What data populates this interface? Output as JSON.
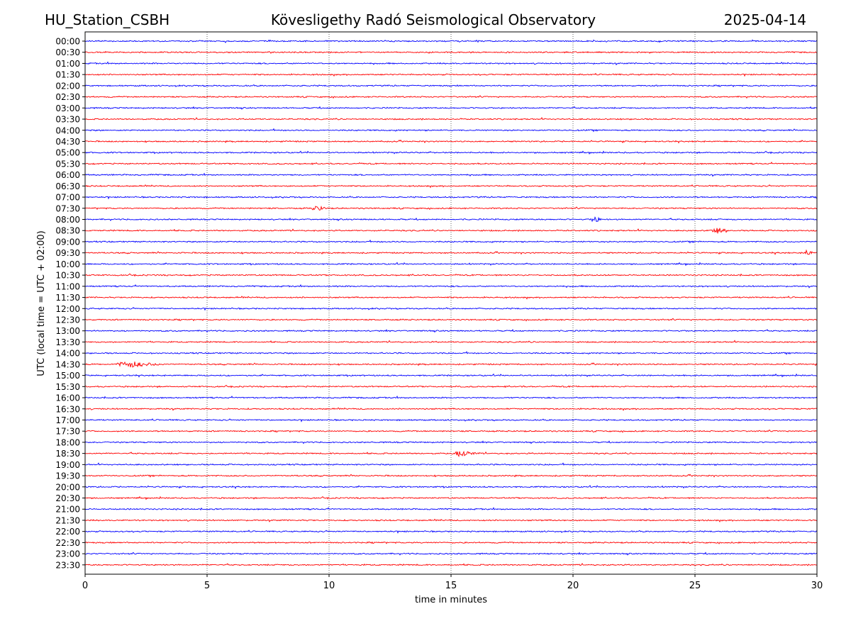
{
  "header": {
    "station": "HU_Station_CSBH",
    "observatory": "Kövesligethy Radó Seismological Observatory",
    "date": "2025-04-14"
  },
  "colors": {
    "odd_trace": "#0000ff",
    "even_trace": "#ff0000",
    "axis": "#000000",
    "grid": "#000000"
  },
  "chart_data": {
    "type": "line",
    "title": "",
    "xlabel": "time in minutes",
    "ylabel": "UTC (local time = UTC + 02:00)",
    "xlim": [
      0,
      30
    ],
    "x_ticks": [
      0,
      5,
      10,
      15,
      20,
      25,
      30
    ],
    "grid": "vertical dotted lines at every 5 minutes",
    "trace_colors": [
      "blue",
      "red"
    ],
    "rows": [
      "00:00",
      "00:30",
      "01:00",
      "01:30",
      "02:00",
      "02:30",
      "03:00",
      "03:30",
      "04:00",
      "04:30",
      "05:00",
      "05:30",
      "06:00",
      "06:30",
      "07:00",
      "07:30",
      "08:00",
      "08:30",
      "09:00",
      "09:30",
      "10:00",
      "10:30",
      "11:00",
      "11:30",
      "12:00",
      "12:30",
      "13:00",
      "13:30",
      "14:00",
      "14:30",
      "15:00",
      "15:30",
      "16:00",
      "16:30",
      "17:00",
      "17:30",
      "18:00",
      "18:30",
      "19:00",
      "19:30",
      "20:00",
      "20:30",
      "21:00",
      "21:30",
      "22:00",
      "22:30",
      "23:00",
      "23:30"
    ],
    "events": [
      {
        "row": "07:30",
        "start_min": 9.3,
        "end_min": 9.9,
        "peak_min": 9.5
      },
      {
        "row": "08:00",
        "start_min": 20.7,
        "end_min": 21.2,
        "peak_min": 20.9
      },
      {
        "row": "08:30",
        "start_min": 25.5,
        "end_min": 26.3,
        "peak_min": 26.0
      },
      {
        "row": "09:30",
        "start_min": 29.4,
        "end_min": 29.8,
        "peak_min": 29.6
      },
      {
        "row": "14:30",
        "start_min": 1.3,
        "end_min": 3.2,
        "peak_min": 1.9
      },
      {
        "row": "18:30",
        "start_min": 15.2,
        "end_min": 16.2,
        "peak_min": 15.4
      }
    ]
  }
}
